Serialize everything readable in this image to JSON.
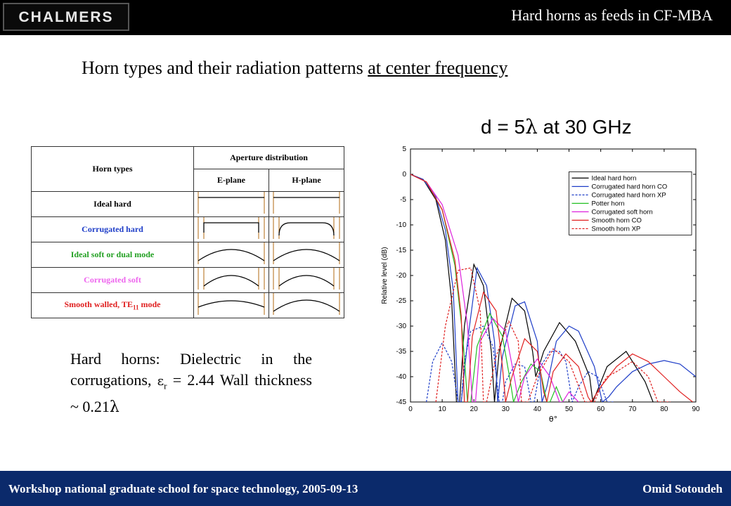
{
  "header": {
    "logo_text": "CHALMERS",
    "title": "Hard horns as feeds in CF-MBA"
  },
  "main_title": {
    "prefix": "Horn types and their radiation patterns ",
    "underlined": "at center frequency"
  },
  "subtitle": {
    "pre": "d = 5",
    "lambda": "λ",
    "post": " at 30 GHz"
  },
  "table": {
    "col_header_group": "Aperture distribution",
    "row_header": "Horn types",
    "col_e": "E-plane",
    "col_h": "H-plane",
    "rows": [
      {
        "label": "Ideal hard",
        "color": "#000000"
      },
      {
        "label": "Corrugated hard",
        "color": "#1f3ec8"
      },
      {
        "label": "Ideal soft or dual mode",
        "color": "#22a022"
      },
      {
        "label": "Corrugated soft",
        "color": "#ee66ee"
      },
      {
        "label": "Smooth walled, TE",
        "sub": "11",
        "suffix": " mode",
        "color": "#e02020"
      }
    ]
  },
  "note": {
    "line_a": "Hard horns: Dielectric in the corrugations, ",
    "eps": "ε",
    "eps_sub": "r",
    "line_b": " = 2.44 Wall thickness ~ 0.21",
    "lambda": "λ"
  },
  "chart_data": {
    "type": "line",
    "xlabel": "θ°",
    "ylabel": "Relative level (dB)",
    "xlim": [
      0,
      90
    ],
    "ylim": [
      -45,
      5
    ],
    "xticks": [
      0,
      10,
      20,
      30,
      40,
      50,
      60,
      70,
      80,
      90
    ],
    "yticks": [
      5,
      0,
      -5,
      -10,
      -15,
      -20,
      -25,
      -30,
      -35,
      -40,
      -45
    ],
    "legend_position": "top-right",
    "series": [
      {
        "name": "Ideal hard horn",
        "color": "#000000",
        "dash": false,
        "x": [
          0,
          4,
          8,
          11,
          13,
          14.5,
          15.5,
          17,
          20,
          23,
          25.5,
          26.5,
          28,
          32,
          36,
          38.5,
          39.5,
          42,
          47,
          52,
          56.5,
          57.5,
          62,
          68,
          74,
          76.5
        ],
        "y": [
          0,
          -1,
          -5,
          -13,
          -25,
          -45,
          -45,
          -30,
          -17.8,
          -22,
          -35,
          -45,
          -35,
          -24.5,
          -27,
          -35,
          -40,
          -35,
          -29.3,
          -33,
          -40,
          -45,
          -38,
          -35,
          -41,
          -45
        ]
      },
      {
        "name": "Corrugated hard horn CO",
        "color": "#1f3ec8",
        "dash": false,
        "x": [
          0,
          4,
          8,
          11,
          13.5,
          15,
          16,
          18,
          21,
          24,
          26.5,
          27.5,
          29,
          33,
          36,
          40,
          41.5,
          43,
          46,
          50,
          53,
          58,
          60.5,
          62.5,
          65,
          70,
          75,
          80,
          85,
          90
        ],
        "y": [
          0,
          -1,
          -4.5,
          -11,
          -23,
          -45,
          -45,
          -33,
          -18.5,
          -22,
          -33,
          -45,
          -36,
          -26,
          -25.2,
          -33,
          -45,
          -42,
          -33,
          -30,
          -31,
          -38,
          -45,
          -44,
          -42,
          -39,
          -37.5,
          -36.8,
          -37.5,
          -40
        ]
      },
      {
        "name": "Corrugated hard horn XP",
        "color": "#1f3ec8",
        "dash": true,
        "x": [
          5,
          7,
          10,
          13,
          15,
          16,
          17,
          19,
          23,
          26,
          28,
          29,
          30,
          33,
          36,
          38,
          39,
          41,
          44,
          47,
          49,
          51,
          53,
          56,
          59,
          62,
          64
        ],
        "y": [
          -45,
          -37,
          -33.3,
          -37,
          -45,
          -45,
          -37,
          -31,
          -30,
          -34,
          -45,
          -45,
          -41,
          -37.5,
          -38,
          -45,
          -45,
          -38,
          -35,
          -35,
          -37,
          -45,
          -42,
          -39,
          -40,
          -45,
          -45
        ]
      },
      {
        "name": "Potter horn",
        "color": "#22c022",
        "dash": false,
        "x": [
          0,
          5,
          10,
          14,
          16.5,
          18,
          19,
          21,
          25,
          29,
          31.5,
          32.5,
          35,
          38,
          41,
          43,
          44,
          46,
          48
        ],
        "y": [
          0,
          -1.5,
          -7,
          -18,
          -32,
          -45,
          -45,
          -34,
          -27.5,
          -32,
          -41,
          -45,
          -41,
          -37.5,
          -39,
          -45,
          -45,
          -42,
          -45
        ]
      },
      {
        "name": "Corrugated soft horn",
        "color": "#dd22dd",
        "dash": false,
        "x": [
          0,
          5,
          10,
          15,
          18,
          19.5,
          20.5,
          22,
          26,
          30,
          33,
          34,
          36,
          40,
          44,
          47,
          48,
          50,
          53
        ],
        "y": [
          0,
          -1.5,
          -6,
          -16,
          -30,
          -45,
          -45,
          -33,
          -28.5,
          -31,
          -41,
          -45,
          -40,
          -36.5,
          -40,
          -45,
          -45,
          -43,
          -45
        ]
      },
      {
        "name": "Smooth horn CO",
        "color": "#e02020",
        "dash": false,
        "x": [
          0,
          5,
          10,
          14,
          16,
          17,
          18,
          19.5,
          23,
          27,
          29,
          30,
          32,
          36,
          40,
          42,
          43,
          45,
          49,
          53,
          56,
          57,
          60,
          65,
          70,
          75,
          80,
          85,
          89
        ],
        "y": [
          0,
          -1.5,
          -7,
          -17,
          -28,
          -45,
          -45,
          -32,
          -23.3,
          -27,
          -38,
          -45,
          -40,
          -32.5,
          -35,
          -43,
          -45,
          -39,
          -35.5,
          -38,
          -44,
          -45,
          -42,
          -38,
          -35.5,
          -37,
          -40,
          -43,
          -45
        ]
      },
      {
        "name": "Smooth horn XP",
        "color": "#e02020",
        "dash": true,
        "x": [
          8,
          9,
          11,
          15,
          19,
          22,
          23,
          24,
          27,
          31,
          34,
          35,
          37,
          40,
          45,
          50,
          55,
          58,
          60,
          62,
          65,
          70,
          75,
          78,
          80,
          82
        ],
        "y": [
          -45,
          -40,
          -30,
          -19,
          -18.5,
          -27,
          -45,
          -45,
          -36,
          -29,
          -33,
          -45,
          -45,
          -40,
          -34.5,
          -37,
          -45,
          -45,
          -42,
          -40,
          -39,
          -37,
          -40,
          -45,
          -45,
          -45
        ]
      }
    ]
  },
  "footer": {
    "left": "Workshop national graduate school for space technology, 2005-09-13",
    "right": "Omid Sotoudeh"
  }
}
